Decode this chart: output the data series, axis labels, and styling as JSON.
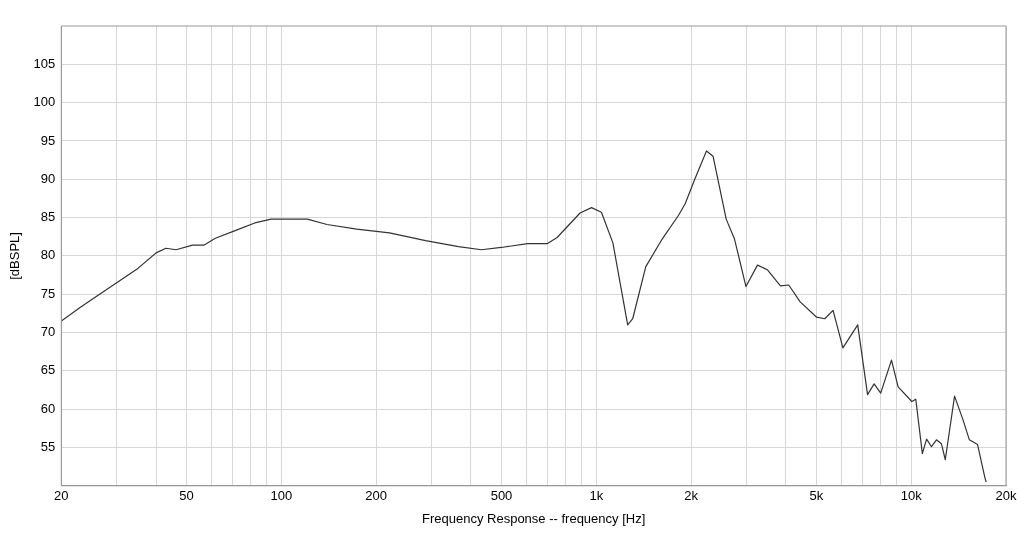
{
  "chart_data": {
    "type": "line",
    "xlabel": "Frequency Response -- frequency [Hz]",
    "ylabel": "[dBSPL]",
    "log": "x",
    "grid": true,
    "legend": false,
    "marker": "none",
    "line_style": "solid",
    "xlim": [
      20,
      20000
    ],
    "ylim": [
      50,
      110
    ],
    "xticks": [
      20,
      {
        "value": 30,
        "label": null
      },
      {
        "value": 40,
        "label": null
      },
      50,
      {
        "value": 60,
        "label": null
      },
      {
        "value": 70,
        "label": null
      },
      {
        "value": 80,
        "label": null
      },
      {
        "value": 90,
        "label": null
      },
      100,
      200,
      {
        "value": 300,
        "label": null
      },
      {
        "value": 400,
        "label": null
      },
      500,
      {
        "value": 600,
        "label": null
      },
      {
        "value": 700,
        "label": null
      },
      {
        "value": 800,
        "label": null
      },
      {
        "value": 900,
        "label": null
      },
      {
        "value": 1000,
        "label": "1k"
      },
      {
        "value": 2000,
        "label": "2k"
      },
      {
        "value": 3000,
        "label": null
      },
      {
        "value": 4000,
        "label": null
      },
      {
        "value": 5000,
        "label": "5k"
      },
      {
        "value": 6000,
        "label": null
      },
      {
        "value": 7000,
        "label": null
      },
      {
        "value": 8000,
        "label": null
      },
      {
        "value": 9000,
        "label": null
      },
      {
        "value": 10000,
        "label": "10k"
      },
      {
        "value": 20000,
        "label": "20k"
      }
    ],
    "yticks": [
      55,
      60,
      65,
      70,
      75,
      80,
      85,
      90,
      95,
      100,
      105
    ],
    "series": [
      {
        "color": "#333333",
        "x": [
          20,
          23,
          26.9,
          35.1,
          40,
          43,
          46.3,
          52.2,
          56.7,
          61.7,
          71.3,
          82.3,
          92.8,
          120.9,
          139.6,
          173.4,
          220.4,
          287,
          365,
          432,
          499,
          605,
          698,
          751,
          888,
          966,
          1038,
          1129,
          1258,
          1305,
          1436,
          1619,
          1825,
          1915,
          2059,
          2238,
          2349,
          2585,
          2747,
          2987,
          3249,
          3491,
          3843,
          4083,
          4441,
          5008,
          5316,
          5648,
          6069,
          6763,
          7268,
          7625,
          8000,
          8657,
          9088,
          10050,
          10340,
          10850,
          11190,
          11600,
          12030,
          12470,
          12830,
          13730,
          14580,
          15300,
          16240,
          17130,
          17300
        ],
        "values": [
          71.5,
          73.3,
          75.2,
          78.4,
          80.4,
          81,
          80.8,
          81.4,
          81.4,
          82.3,
          83.3,
          84.3,
          84.8,
          84.8,
          84.1,
          83.5,
          83,
          82,
          81.2,
          80.8,
          81.1,
          81.6,
          81.6,
          82.4,
          85.6,
          86.3,
          85.7,
          81.7,
          71,
          71.8,
          78.6,
          82.2,
          85.3,
          86.8,
          90.1,
          93.7,
          93,
          84.8,
          82.2,
          76,
          78.8,
          78.2,
          76.1,
          76.2,
          74,
          72,
          71.8,
          72.9,
          68,
          71,
          61.9,
          63.3,
          62.1,
          66.4,
          62.9,
          61,
          61.3,
          54.2,
          56.1,
          55.1,
          56,
          55.5,
          53.4,
          61.7,
          58.7,
          56,
          55.4,
          51.1,
          50.5
        ]
      }
    ]
  }
}
